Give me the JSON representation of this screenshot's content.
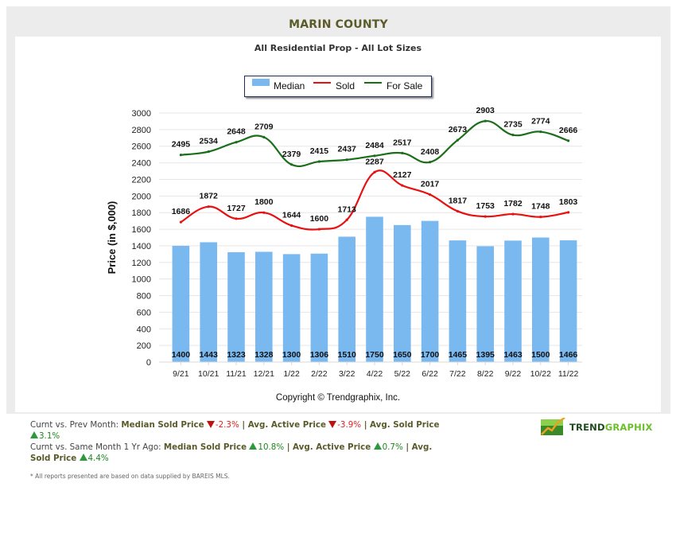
{
  "header": {
    "title": "MARIN COUNTY",
    "subtitle": "All Residential Prop - All Lot Sizes"
  },
  "legend": {
    "items": [
      {
        "label": "Median",
        "kind": "bar",
        "color": "#7ab8f0"
      },
      {
        "label": "Sold",
        "kind": "line",
        "color": "#e81010"
      },
      {
        "label": "For Sale",
        "kind": "line",
        "color": "#1a6e1a"
      }
    ]
  },
  "chart_data": {
    "type": "bar+line",
    "title": "All Residential Prop - All Lot Sizes",
    "xlabel": "",
    "ylabel": "Price (in $,000)",
    "ylim": [
      0,
      3000
    ],
    "yticks": [
      0,
      200,
      400,
      600,
      800,
      1000,
      1200,
      1400,
      1600,
      1800,
      2000,
      2200,
      2400,
      2600,
      2800,
      3000
    ],
    "grid": true,
    "legend_position": "top-center",
    "categories": [
      "9/21",
      "10/21",
      "11/21",
      "12/21",
      "1/22",
      "2/22",
      "3/22",
      "4/22",
      "5/22",
      "6/22",
      "7/22",
      "8/22",
      "9/22",
      "10/22",
      "11/22"
    ],
    "series": [
      {
        "name": "Median",
        "type": "bar",
        "color": "#7ab8f0",
        "values": [
          1400,
          1443,
          1323,
          1328,
          1300,
          1306,
          1510,
          1750,
          1650,
          1700,
          1465,
          1395,
          1463,
          1500,
          1466
        ]
      },
      {
        "name": "Sold",
        "type": "line",
        "color": "#e81010",
        "values": [
          1686,
          1872,
          1727,
          1800,
          1644,
          1600,
          1713,
          2287,
          2127,
          2017,
          1817,
          1753,
          1782,
          1748,
          1803
        ]
      },
      {
        "name": "For Sale",
        "type": "line",
        "color": "#1a6e1a",
        "values": [
          2495,
          2534,
          2648,
          2709,
          2379,
          2415,
          2437,
          2484,
          2517,
          2408,
          2673,
          2903,
          2735,
          2774,
          2666
        ]
      }
    ]
  },
  "footer": {
    "copyright": "Copyright © Trendgraphix, Inc."
  },
  "stats": {
    "prev_month": {
      "label": "Curnt vs. Prev Month: ",
      "items": [
        {
          "name": "Median Sold Price",
          "direction": "down",
          "value": "-2.3%"
        },
        {
          "name": "Avg. Active Price",
          "direction": "down",
          "value": "-3.9%"
        },
        {
          "name": "Avg. Sold Price",
          "direction": "up",
          "value": "3.1%"
        }
      ]
    },
    "year_ago": {
      "label": "Curnt vs. Same Month 1 Yr Ago: ",
      "items": [
        {
          "name": "Median Sold Price",
          "direction": "up",
          "value": "10.8%"
        },
        {
          "name": "Avg. Active Price",
          "direction": "up",
          "value": "0.7%"
        },
        {
          "name": "Avg. Sold Price",
          "direction": "up",
          "value": "4.4%"
        }
      ]
    },
    "separator": " | "
  },
  "disclaimer": "* All reports presented are based on data supplied by BAREIS MLS.",
  "logo": {
    "part1": "TREND",
    "part2": "GRAPHIX",
    "color1": "#1e4a1e",
    "color2": "#6abf2a"
  }
}
